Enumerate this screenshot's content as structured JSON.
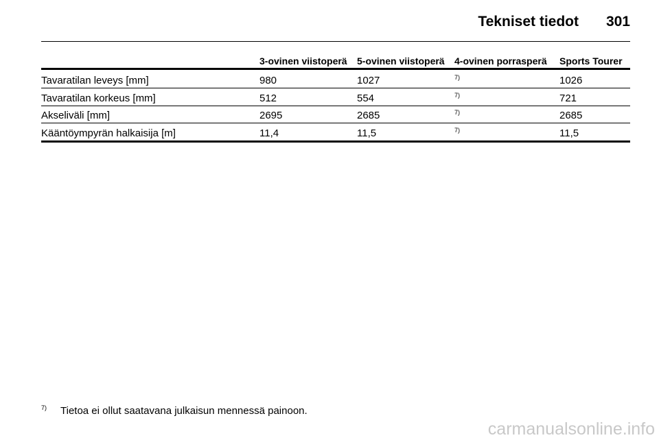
{
  "header": {
    "title": "Tekniset tiedot",
    "page_number": "301"
  },
  "table": {
    "columns": [
      "3-ovinen viistoperä",
      "5-ovinen viistoperä",
      "4-ovinen porrasperä",
      "Sports Tourer"
    ],
    "rows": [
      [
        "Tavaratilan leveys [mm]",
        "980",
        "1027",
        "7)",
        "1026"
      ],
      [
        "Tavaratilan korkeus [mm]",
        "512",
        "554",
        "7)",
        "721"
      ],
      [
        "Akseliväli [mm]",
        "2695",
        "2685",
        "7)",
        "2685"
      ],
      [
        "Kääntöympyrän halkaisija [m]",
        "11,4",
        "11,5",
        "7)",
        "11,5"
      ]
    ]
  },
  "footnote": {
    "marker": "7)",
    "text": "Tietoa ei ollut saatavana julkaisun mennessä painoon."
  },
  "watermark": "carmanualsonline.info"
}
